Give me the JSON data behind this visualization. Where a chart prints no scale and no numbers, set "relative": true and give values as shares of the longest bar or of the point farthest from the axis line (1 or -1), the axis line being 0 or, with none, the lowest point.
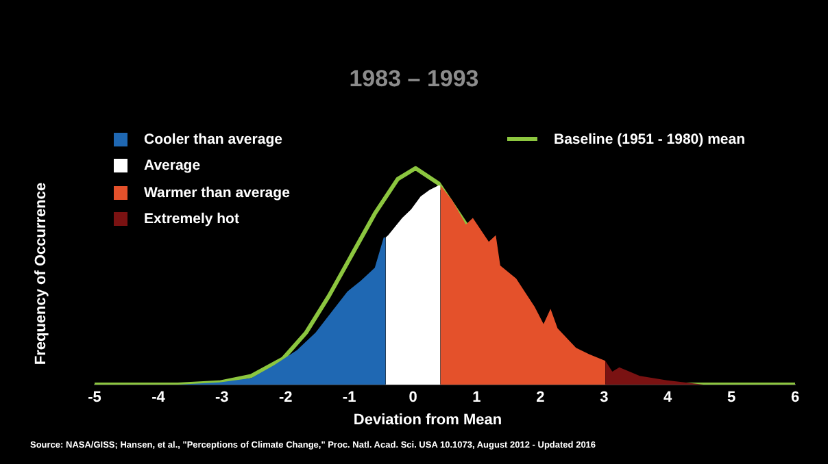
{
  "chart_data": {
    "type": "area",
    "title": "1983 – 1993",
    "xlabel": "Deviation from Mean",
    "ylabel": "Frequency of Occurrence",
    "relative": true,
    "xlim": [
      -5,
      6
    ],
    "xticks": [
      -5,
      -4,
      -3,
      -2,
      -1,
      0,
      1,
      2,
      3,
      4,
      5,
      6
    ],
    "grid": false,
    "legend": "top",
    "marker": "none",
    "series": [
      {
        "name": "Cooler than average",
        "color": "#1f68b3",
        "x": [
          -3.69,
          -3.04,
          -2.54,
          -2.18,
          -1.82,
          -1.53,
          -1.32,
          -1.03,
          -0.82,
          -0.6,
          -0.46,
          -0.43
        ],
        "values": [
          0,
          0.01,
          0.03,
          0.09,
          0.16,
          0.24,
          0.32,
          0.43,
          0.48,
          0.54,
          0.68,
          0.68
        ]
      },
      {
        "name": "Average",
        "color": "#ffffff",
        "x": [
          -0.43,
          -0.39,
          -0.17,
          -0.03,
          0.12,
          0.26,
          0.4,
          0.43
        ],
        "values": [
          0.68,
          0.69,
          0.77,
          0.81,
          0.87,
          0.9,
          0.92,
          0.92
        ]
      },
      {
        "name": "Warmer than average",
        "color": "#e4512b",
        "x": [
          0.43,
          0.62,
          0.83,
          0.94,
          1.19,
          1.3,
          1.37,
          1.62,
          1.91,
          2.05,
          2.16,
          2.27,
          2.56,
          2.77,
          3.02
        ],
        "values": [
          0.92,
          0.85,
          0.74,
          0.77,
          0.66,
          0.69,
          0.55,
          0.49,
          0.36,
          0.28,
          0.35,
          0.26,
          0.17,
          0.14,
          0.11
        ]
      },
      {
        "name": "Extremely hot",
        "color": "#7a1212",
        "x": [
          3.02,
          3.13,
          3.24,
          3.56,
          3.99,
          4.56
        ],
        "values": [
          0.11,
          0.06,
          0.08,
          0.04,
          0.02,
          0
        ]
      },
      {
        "name": "Baseline (1951 - 1980) mean",
        "type": "line",
        "color": "#8cc63f",
        "x": [
          -5,
          -3.69,
          -3.04,
          -2.54,
          -2.04,
          -1.68,
          -1.32,
          -0.96,
          -0.6,
          -0.24,
          0.04,
          0.4,
          0.83,
          0.9,
          4.1,
          5,
          6
        ],
        "values": [
          0,
          0,
          0.01,
          0.04,
          0.12,
          0.24,
          0.41,
          0.6,
          0.79,
          0.95,
          1,
          0.93,
          0.74,
          null,
          0,
          0,
          0
        ]
      }
    ],
    "annotations": [
      "Source: NASA/GISS; Hansen, et al., \"Perceptions of Climate Change,\" Proc. Natl. Acad. Sci. USA 10.1073, August 2012 - Updated 2016"
    ]
  }
}
